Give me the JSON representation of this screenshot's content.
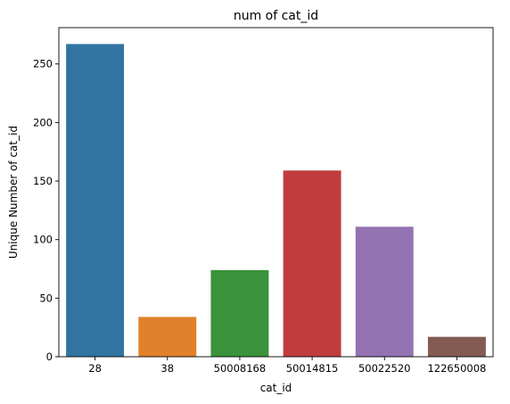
{
  "chart_data": {
    "type": "bar",
    "title": "num of cat_id",
    "xlabel": "cat_id",
    "ylabel": "Unique Number of cat_id",
    "categories": [
      "28",
      "38",
      "50008168",
      "50014815",
      "50022520",
      "122650008"
    ],
    "values": [
      267,
      34,
      74,
      159,
      111,
      17
    ],
    "colors": [
      "#3274a1",
      "#e1812c",
      "#3a923a",
      "#c03d3e",
      "#9372b2",
      "#845b53"
    ],
    "ylim": [
      0,
      281
    ],
    "yticks": [
      0,
      50,
      100,
      150,
      200,
      250
    ],
    "grid": false,
    "legend": "none"
  }
}
